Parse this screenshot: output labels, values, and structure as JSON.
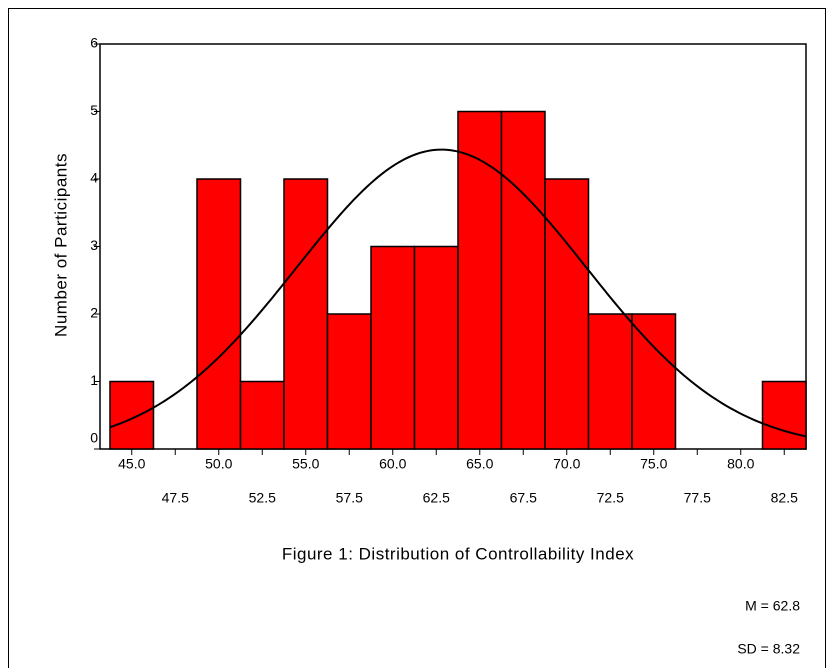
{
  "chart_data": {
    "type": "histogram",
    "title": "Figure 1: Distribution of Controllability Index",
    "y_label": "Number of Participants",
    "bins": [
      43.75,
      46.25,
      48.75,
      51.25,
      53.75,
      56.25,
      58.75,
      61.25,
      63.75,
      66.25,
      68.75,
      71.25,
      73.75,
      76.25,
      78.75,
      81.25,
      83.75
    ],
    "counts": [
      1,
      0,
      4,
      1,
      4,
      2,
      3,
      3,
      5,
      5,
      4,
      2,
      2,
      0,
      0,
      1
    ],
    "color": "#ff0000",
    "xlim": [
      43.75,
      83.75
    ],
    "ylim": [
      0,
      6
    ],
    "xticks": [
      {
        "value": 45,
        "label": "45.0"
      },
      {
        "value": 47.5,
        "label": "47.5"
      },
      {
        "value": 50,
        "label": "50.0"
      },
      {
        "value": 52.5,
        "label": "52.5"
      },
      {
        "value": 55,
        "label": "55.0"
      },
      {
        "value": 57.5,
        "label": "57.5"
      },
      {
        "value": 60,
        "label": "60.0"
      },
      {
        "value": 62.5,
        "label": "62.5"
      },
      {
        "value": 65,
        "label": "65.0"
      },
      {
        "value": 67.5,
        "label": "67.5"
      },
      {
        "value": 70,
        "label": "70.0"
      },
      {
        "value": 72.5,
        "label": "72.5"
      },
      {
        "value": 75,
        "label": "75.0"
      },
      {
        "value": 77.5,
        "label": "77.5"
      },
      {
        "value": 80,
        "label": "80.0"
      },
      {
        "value": 82.5,
        "label": "82.5"
      }
    ],
    "yticks": [
      0,
      1,
      2,
      3,
      4,
      5,
      6
    ],
    "normal_curve": {
      "mean": 62.8,
      "sd": 8.32,
      "color": "#000000"
    },
    "annotations": [
      "M = 62.8",
      "SD = 8.32"
    ]
  }
}
